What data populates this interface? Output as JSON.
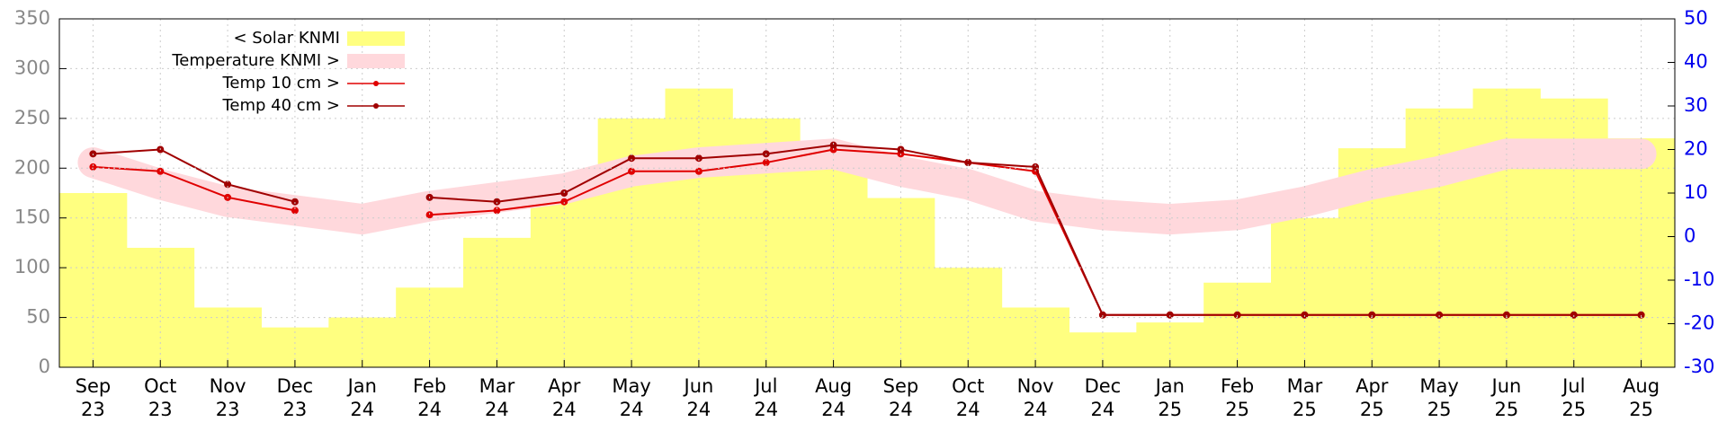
{
  "chart_data": {
    "type": "combo",
    "categories": [
      [
        "Sep",
        "23"
      ],
      [
        "Oct",
        "23"
      ],
      [
        "Nov",
        "23"
      ],
      [
        "Dec",
        "23"
      ],
      [
        "Jan",
        "24"
      ],
      [
        "Feb",
        "24"
      ],
      [
        "Mar",
        "24"
      ],
      [
        "Apr",
        "24"
      ],
      [
        "May",
        "24"
      ],
      [
        "Jun",
        "24"
      ],
      [
        "Jul",
        "24"
      ],
      [
        "Aug",
        "24"
      ],
      [
        "Sep",
        "24"
      ],
      [
        "Oct",
        "24"
      ],
      [
        "Nov",
        "24"
      ],
      [
        "Dec",
        "24"
      ],
      [
        "Jan",
        "25"
      ],
      [
        "Feb",
        "25"
      ],
      [
        "Mar",
        "25"
      ],
      [
        "Apr",
        "25"
      ],
      [
        "May",
        "25"
      ],
      [
        "Jun",
        "25"
      ],
      [
        "Jul",
        "25"
      ],
      [
        "Aug",
        "25"
      ]
    ],
    "series": [
      {
        "name": "< Solar KNMI",
        "type": "area",
        "color": "#ffff80",
        "values": [
          175,
          120,
          60,
          40,
          50,
          80,
          130,
          180,
          250,
          280,
          250,
          220,
          170,
          100,
          60,
          35,
          45,
          85,
          150,
          220,
          260,
          280,
          270,
          230
        ]
      },
      {
        "name": "Temperature KNMI >",
        "type": "band",
        "color": "#ffd8dc",
        "axis": "y2",
        "values": [
          17,
          12,
          8,
          6,
          4,
          7,
          9,
          11,
          15,
          17,
          18,
          19,
          15,
          12,
          7,
          5,
          4,
          5,
          8,
          12,
          15,
          19,
          19,
          19
        ]
      },
      {
        "name": "Temp 10 cm >",
        "type": "line",
        "color": "#e00000",
        "axis": "y2",
        "values": [
          16,
          15,
          9,
          6,
          null,
          5,
          6,
          8,
          15,
          15,
          17,
          20,
          19,
          17,
          15,
          -18,
          -18,
          -18,
          -18,
          -18,
          -18,
          -18,
          -18,
          -18
        ]
      },
      {
        "name": "Temp 40 cm >",
        "type": "line",
        "color": "#a00000",
        "axis": "y2",
        "values": [
          19,
          20,
          12,
          8,
          null,
          9,
          8,
          10,
          18,
          18,
          19,
          21,
          20,
          17,
          16,
          -18,
          -18,
          -18,
          -18,
          -18,
          -18,
          -18,
          -18,
          -18
        ]
      }
    ],
    "ylim": [
      0,
      350
    ],
    "yticks": [
      0,
      50,
      100,
      150,
      200,
      250,
      300,
      350
    ],
    "y2lim": [
      -30,
      50
    ],
    "y2ticks": [
      -30,
      -20,
      -10,
      0,
      10,
      20,
      30,
      40,
      50
    ],
    "grid": true,
    "legend": "upper left"
  }
}
